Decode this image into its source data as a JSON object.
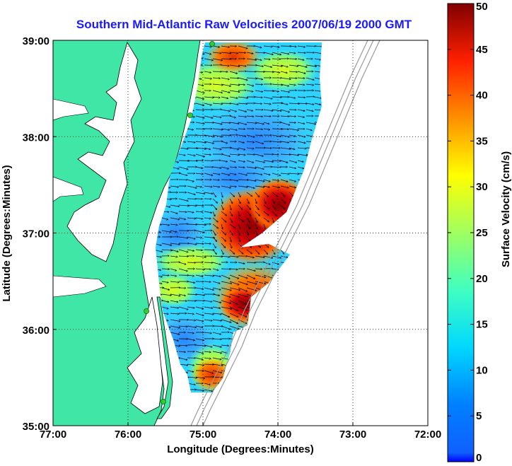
{
  "chart_data": {
    "type": "heatmap",
    "title": "Southern Mid-Atlantic Raw Velocities 2007/06/19 2000 GMT",
    "xlabel": "Longitude (Degrees:Minutes)",
    "ylabel": "Latitude (Degrees:Minutes)",
    "x_ticks": [
      "77:00",
      "76:00",
      "75:00",
      "74:00",
      "73:00",
      "72:00"
    ],
    "y_ticks": [
      "39:00",
      "38:00",
      "37:00",
      "36:00",
      "35:00"
    ],
    "xlim": [
      -77,
      -72
    ],
    "ylim": [
      35,
      39
    ],
    "grid": true,
    "colorbar": {
      "label": "Surface Velocity (cm/s)",
      "ticks": [
        "50",
        "45",
        "40",
        "35",
        "30",
        "25",
        "20",
        "15",
        "10",
        "5",
        "0"
      ],
      "range": [
        0,
        50
      ],
      "colormap": "jet"
    },
    "hotspots": [
      {
        "lon": -74.2,
        "lat": 37.1,
        "speed_cm_s": 50
      },
      {
        "lon": -73.85,
        "lat": 37.25,
        "speed_cm_s": 46
      },
      {
        "lon": -74.2,
        "lat": 36.3,
        "speed_cm_s": 42
      },
      {
        "lon": -74.6,
        "lat": 38.8,
        "speed_cm_s": 40
      },
      {
        "lon": -75.0,
        "lat": 36.75,
        "speed_cm_s": 24
      },
      {
        "lon": -75.5,
        "lat": 36.3,
        "speed_cm_s": 22
      },
      {
        "lon": -75.0,
        "lat": 35.5,
        "speed_cm_s": 36
      },
      {
        "lon": -74.4,
        "lat": 37.7,
        "speed_cm_s": 8
      },
      {
        "lon": -75.1,
        "lat": 36.9,
        "speed_cm_s": 6
      }
    ],
    "background_speed_cm_s": 13,
    "colors": {
      "land": "#3fe6a6",
      "coastline": "#000000",
      "isobath": "#999999",
      "title": "#1a1aff",
      "station_marker": "#33cc33"
    }
  }
}
